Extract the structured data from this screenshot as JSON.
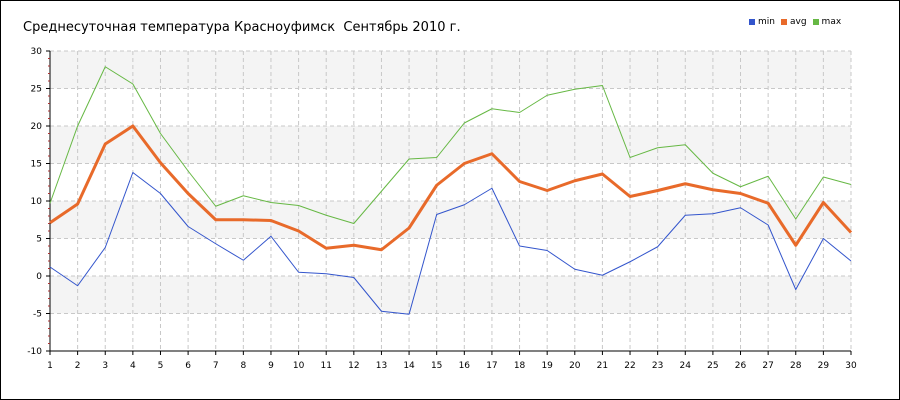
{
  "chart_data": {
    "type": "line",
    "title": "Среднесуточная температура Красноуфимск  Сентябрь 2010 г.",
    "xlabel": "",
    "ylabel": "",
    "x": [
      1,
      2,
      3,
      4,
      5,
      6,
      7,
      8,
      9,
      10,
      11,
      12,
      13,
      14,
      15,
      16,
      17,
      18,
      19,
      20,
      21,
      22,
      23,
      24,
      25,
      26,
      27,
      28,
      29,
      30
    ],
    "xlim": [
      1,
      30
    ],
    "ylim": [
      -10,
      30
    ],
    "yticks": [
      -10,
      -5,
      0,
      5,
      10,
      15,
      20,
      25,
      30
    ],
    "grid": true,
    "legend_position": "top-right",
    "series": [
      {
        "name": "min",
        "color": "#3355cc",
        "width": 1,
        "values": [
          1.2,
          -1.3,
          3.8,
          13.8,
          11.0,
          6.6,
          4.3,
          2.1,
          5.3,
          0.5,
          0.3,
          -0.2,
          -4.7,
          -5.1,
          8.2,
          9.5,
          11.7,
          4.0,
          3.4,
          0.9,
          0.1,
          1.9,
          3.9,
          8.1,
          8.3,
          9.1,
          6.8,
          -1.8,
          5.0,
          2.0
        ]
      },
      {
        "name": "avg",
        "color": "#e86a2a",
        "width": 3,
        "values": [
          7.1,
          9.6,
          17.6,
          20.0,
          15.1,
          11.0,
          7.5,
          7.5,
          7.4,
          6.0,
          3.7,
          4.1,
          3.5,
          6.4,
          12.1,
          15.0,
          16.3,
          12.6,
          11.4,
          12.7,
          13.6,
          10.6,
          11.4,
          12.3,
          11.5,
          11.0,
          9.7,
          4.1,
          9.8,
          5.8
        ]
      },
      {
        "name": "max",
        "color": "#66b844",
        "width": 1,
        "values": [
          9.7,
          20.0,
          27.9,
          25.6,
          19.0,
          14.0,
          9.3,
          10.7,
          9.8,
          9.4,
          8.1,
          7.0,
          11.3,
          15.6,
          15.8,
          20.4,
          22.3,
          21.8,
          24.1,
          24.9,
          25.4,
          15.8,
          17.1,
          17.5,
          13.7,
          11.9,
          13.3,
          7.6,
          13.2,
          12.2
        ]
      }
    ]
  }
}
